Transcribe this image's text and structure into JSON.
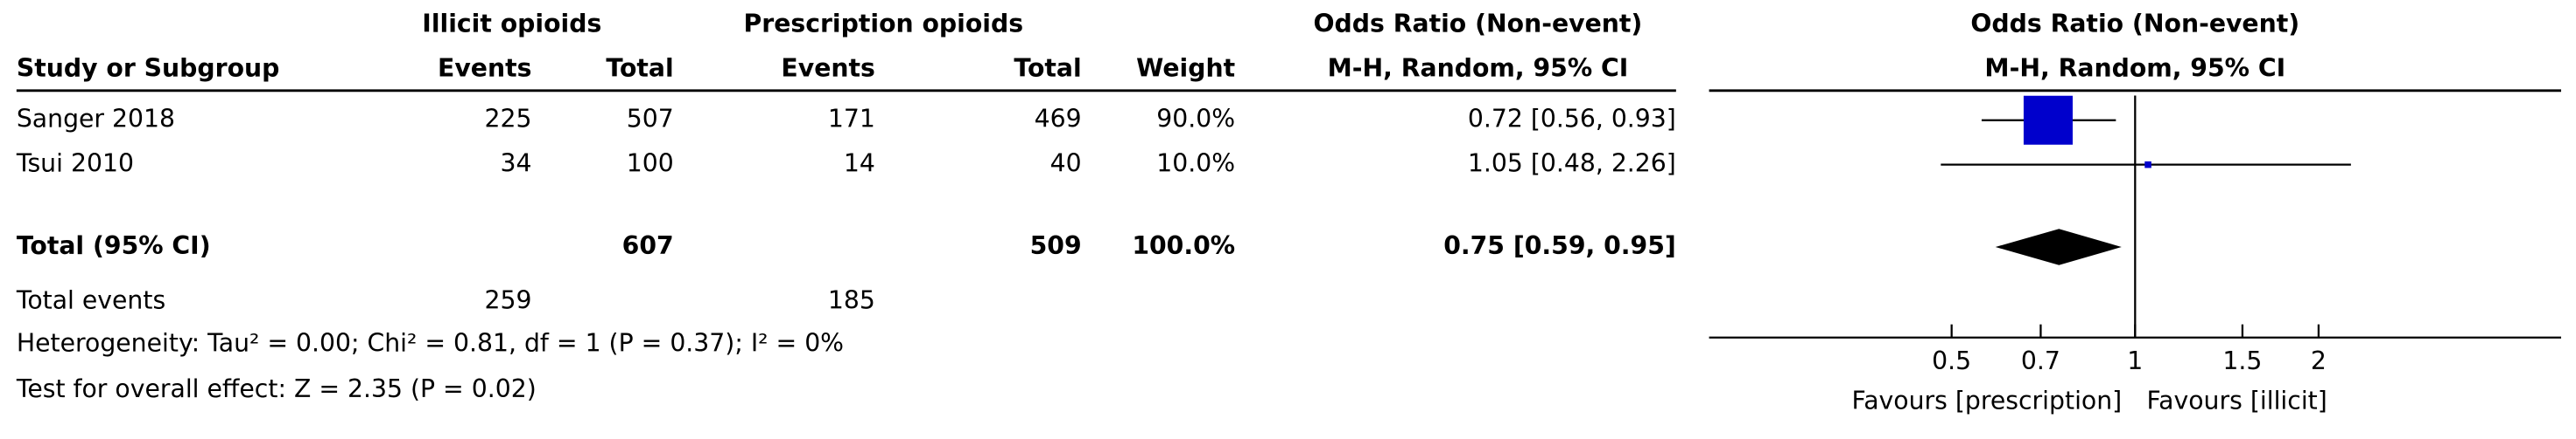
{
  "table": {
    "group_headers": [
      "Illicit opioids",
      "Prescription opioids",
      "Odds Ratio (Non-event)"
    ],
    "columns": [
      "Study or Subgroup",
      "Events",
      "Total",
      "Events",
      "Total",
      "Weight",
      "M-H, Random, 95% CI"
    ],
    "rows": [
      [
        "Sanger 2018",
        "225",
        "507",
        "171",
        "469",
        "90.0%",
        "0.72 [0.56, 0.93]"
      ],
      [
        "Tsui 2010",
        "34",
        "100",
        "14",
        "40",
        "10.0%",
        "1.05 [0.48, 2.26]"
      ]
    ],
    "total": [
      "Total (95% CI)",
      "607",
      "509",
      "100.0%",
      "0.75 [0.59, 0.95]"
    ],
    "total_events": [
      "Total events",
      "259",
      "185"
    ],
    "heterogeneity": "Heterogeneity: Tau² = 0.00; Chi² = 0.81, df = 1 (P = 0.37); I² = 0%",
    "overall_effect": "Test for overall effect: Z = 2.35 (P = 0.02)"
  },
  "chart_data": {
    "type": "forest",
    "title": "Odds Ratio (Non-event)",
    "subtitle": "M-H, Random, 95% CI",
    "log_scale": true,
    "xlim": [
      0.2,
      5
    ],
    "xticks": [
      0.5,
      0.7,
      1,
      1.5,
      2
    ],
    "color": "#0000cc",
    "studies": [
      {
        "estimate": 0.72,
        "ci": [
          0.56,
          0.93
        ],
        "weight": 90
      },
      {
        "estimate": 1.05,
        "ci": [
          0.48,
          2.26
        ],
        "weight": 10
      }
    ],
    "total": {
      "estimate": 0.75,
      "ci": [
        0.59,
        0.95
      ]
    },
    "favours": [
      "Favours [prescription]",
      "Favours [illicit]"
    ]
  }
}
